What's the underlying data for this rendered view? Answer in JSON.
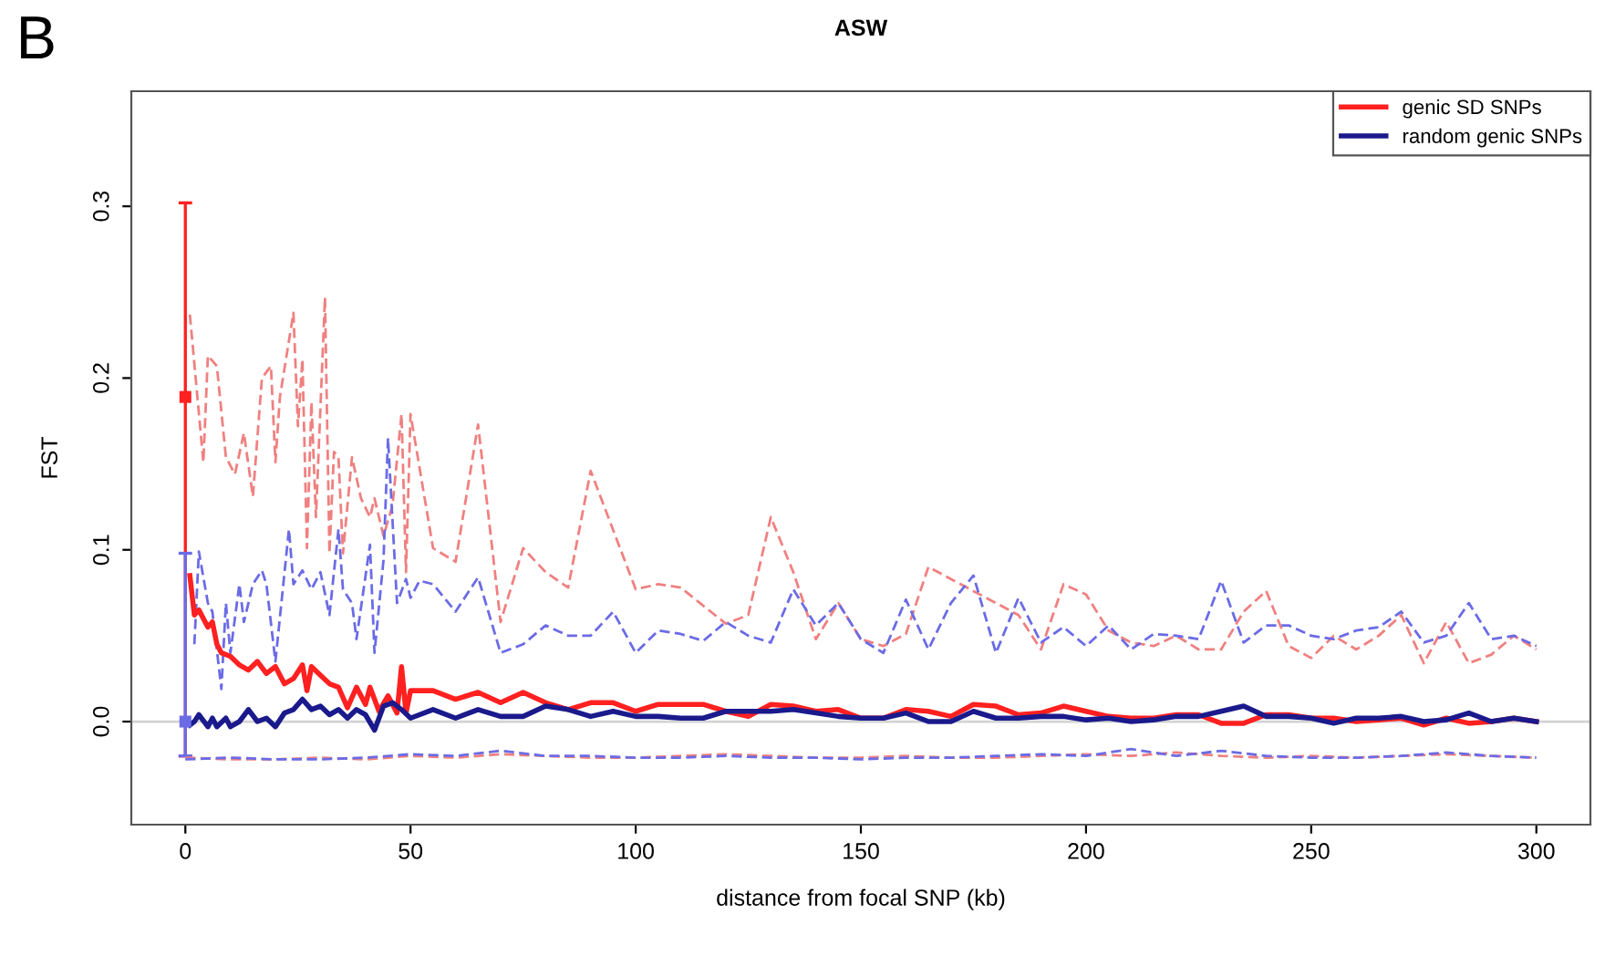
{
  "chart_data": {
    "type": "line",
    "title": "ASW",
    "xlabel": "distance from focal SNP (kb)",
    "ylabel": "FST",
    "annotations": [
      "B"
    ],
    "xlim": [
      -12,
      312
    ],
    "xticks": [
      0,
      50,
      100,
      150,
      200,
      250,
      300
    ],
    "ylim": [
      -0.06,
      0.367
    ],
    "yticks": [
      {
        "value": 0,
        "label": "0.0"
      },
      {
        "value": 0.1,
        "label": "0.1"
      },
      {
        "value": 0.2,
        "label": "0.2"
      },
      {
        "value": 0.3,
        "label": "0.3"
      }
    ],
    "grid": false,
    "legend": "top right",
    "ref_lines": [
      {
        "axis": "y",
        "value": 0,
        "color": "#d3d3d3"
      }
    ],
    "series": [
      {
        "color": "#f08080",
        "line_style": "dashed",
        "x": [
          1,
          4,
          5,
          7,
          9,
          11,
          13,
          15,
          17,
          19,
          20,
          21,
          24,
          25,
          26,
          27,
          28,
          29,
          31,
          32,
          33,
          34,
          35,
          37,
          39,
          41,
          42,
          44,
          46,
          48,
          49,
          50,
          55,
          60,
          65,
          70,
          75,
          80,
          85,
          90,
          100,
          105,
          110,
          120,
          125,
          130,
          135,
          140,
          145,
          150,
          155,
          160,
          165,
          170,
          175,
          180,
          185,
          190,
          195,
          200,
          205,
          210,
          215,
          220,
          225,
          230,
          235,
          240,
          245,
          250,
          255,
          260,
          265,
          270,
          275,
          280,
          285,
          290,
          295,
          300
        ],
        "values": [
          0.237,
          0.151,
          0.213,
          0.207,
          0.154,
          0.144,
          0.168,
          0.131,
          0.2,
          0.207,
          0.151,
          0.189,
          0.238,
          0.172,
          0.211,
          0.101,
          0.186,
          0.119,
          0.247,
          0.098,
          0.157,
          0.154,
          0.098,
          0.154,
          0.13,
          0.119,
          0.13,
          0.108,
          0.126,
          0.179,
          0.087,
          0.179,
          0.101,
          0.093,
          0.173,
          0.058,
          0.101,
          0.087,
          0.078,
          0.146,
          0.077,
          0.08,
          0.078,
          0.057,
          0.062,
          0.119,
          0.087,
          0.048,
          0.069,
          0.048,
          0.044,
          0.051,
          0.09,
          0.083,
          0.076,
          0.069,
          0.062,
          0.042,
          0.08,
          0.074,
          0.053,
          0.046,
          0.044,
          0.05,
          0.042,
          0.042,
          0.064,
          0.076,
          0.044,
          0.037,
          0.05,
          0.042,
          0.05,
          0.062,
          0.034,
          0.058,
          0.034,
          0.039,
          0.05,
          0.042
        ]
      },
      {
        "color": "#6b6be6",
        "line_style": "dashed",
        "x": [
          2,
          3,
          5,
          6,
          8,
          9,
          10,
          12,
          13,
          15,
          17,
          18,
          20,
          23,
          24,
          26,
          28,
          30,
          32,
          34,
          35,
          37,
          38,
          41,
          42,
          44,
          45,
          47,
          49,
          50,
          52,
          55,
          60,
          65,
          70,
          75,
          80,
          85,
          90,
          95,
          100,
          105,
          110,
          115,
          120,
          125,
          130,
          135,
          140,
          145,
          150,
          155,
          160,
          165,
          170,
          175,
          180,
          185,
          190,
          195,
          200,
          205,
          210,
          215,
          220,
          225,
          230,
          235,
          240,
          245,
          250,
          255,
          260,
          265,
          270,
          275,
          280,
          285,
          290,
          295,
          300
        ],
        "values": [
          0.045,
          0.099,
          0.069,
          0.064,
          0.019,
          0.069,
          0.04,
          0.08,
          0.058,
          0.08,
          0.088,
          0.08,
          0.035,
          0.112,
          0.08,
          0.088,
          0.077,
          0.087,
          0.062,
          0.112,
          0.077,
          0.069,
          0.048,
          0.103,
          0.04,
          0.094,
          0.165,
          0.069,
          0.083,
          0.072,
          0.082,
          0.08,
          0.064,
          0.084,
          0.04,
          0.045,
          0.056,
          0.05,
          0.05,
          0.064,
          0.04,
          0.053,
          0.051,
          0.047,
          0.058,
          0.05,
          0.046,
          0.077,
          0.056,
          0.069,
          0.048,
          0.04,
          0.071,
          0.042,
          0.069,
          0.085,
          0.04,
          0.072,
          0.046,
          0.055,
          0.044,
          0.056,
          0.042,
          0.051,
          0.05,
          0.048,
          0.082,
          0.046,
          0.056,
          0.056,
          0.05,
          0.048,
          0.053,
          0.055,
          0.064,
          0.046,
          0.05,
          0.069,
          0.048,
          0.05,
          0.044
        ]
      },
      {
        "color": "#f08080",
        "line_style": "dashed",
        "x": [
          0,
          10,
          20,
          30,
          40,
          50,
          60,
          70,
          80,
          90,
          100,
          110,
          120,
          130,
          140,
          150,
          160,
          170,
          180,
          190,
          200,
          210,
          220,
          230,
          240,
          250,
          260,
          270,
          280,
          290,
          300
        ],
        "values": [
          -0.021,
          -0.022,
          -0.022,
          -0.021,
          -0.022,
          -0.02,
          -0.021,
          -0.019,
          -0.02,
          -0.021,
          -0.021,
          -0.02,
          -0.019,
          -0.02,
          -0.021,
          -0.021,
          -0.02,
          -0.021,
          -0.021,
          -0.02,
          -0.019,
          -0.02,
          -0.018,
          -0.02,
          -0.021,
          -0.02,
          -0.021,
          -0.02,
          -0.019,
          -0.02,
          -0.021
        ]
      },
      {
        "color": "#6b6be6",
        "line_style": "dashed",
        "x": [
          0,
          10,
          20,
          30,
          40,
          50,
          60,
          70,
          80,
          90,
          100,
          110,
          120,
          130,
          140,
          150,
          160,
          170,
          180,
          190,
          200,
          210,
          220,
          230,
          240,
          250,
          260,
          270,
          280,
          290,
          300
        ],
        "values": [
          -0.022,
          -0.021,
          -0.022,
          -0.022,
          -0.021,
          -0.019,
          -0.02,
          -0.017,
          -0.02,
          -0.02,
          -0.021,
          -0.021,
          -0.02,
          -0.021,
          -0.021,
          -0.022,
          -0.021,
          -0.021,
          -0.02,
          -0.019,
          -0.02,
          -0.016,
          -0.02,
          -0.017,
          -0.02,
          -0.021,
          -0.021,
          -0.02,
          -0.018,
          -0.02,
          -0.021
        ]
      },
      {
        "name": "genic SD SNPs",
        "color": "#ff2020",
        "line_style": "solid",
        "x": [
          1,
          2,
          3,
          5,
          6,
          7,
          8,
          10,
          12,
          14,
          16,
          18,
          20,
          22,
          24,
          26,
          27,
          28,
          30,
          32,
          34,
          36,
          38,
          40,
          41,
          43,
          45,
          47,
          48,
          49,
          50,
          55,
          60,
          65,
          70,
          75,
          80,
          85,
          90,
          95,
          100,
          105,
          110,
          115,
          120,
          125,
          130,
          135,
          140,
          145,
          150,
          155,
          160,
          165,
          170,
          175,
          180,
          185,
          190,
          195,
          200,
          205,
          210,
          215,
          220,
          225,
          230,
          235,
          240,
          245,
          250,
          255,
          260,
          265,
          270,
          275,
          280,
          285,
          290,
          295,
          300
        ],
        "values": [
          0.085,
          0.062,
          0.065,
          0.055,
          0.058,
          0.045,
          0.04,
          0.038,
          0.033,
          0.03,
          0.035,
          0.028,
          0.032,
          0.022,
          0.025,
          0.033,
          0.018,
          0.032,
          0.027,
          0.022,
          0.02,
          0.008,
          0.02,
          0.01,
          0.02,
          0.006,
          0.015,
          0.005,
          0.032,
          0.005,
          0.018,
          0.018,
          0.013,
          0.017,
          0.011,
          0.017,
          0.011,
          0.007,
          0.011,
          0.011,
          0.006,
          0.01,
          0.01,
          0.01,
          0.006,
          0.003,
          0.01,
          0.009,
          0.006,
          0.007,
          0.002,
          0.002,
          0.007,
          0.006,
          0.003,
          0.01,
          0.009,
          0.004,
          0.005,
          0.009,
          0.006,
          0.003,
          0.002,
          0.002,
          0.004,
          0.004,
          -0.001,
          -0.001,
          0.004,
          0.004,
          0.002,
          0.002,
          0.0,
          0.001,
          0.002,
          -0.002,
          0.002,
          -0.001,
          0.0,
          0.002,
          0.0
        ]
      },
      {
        "name": "random genic SNPs",
        "color": "#1a1a8c",
        "line_style": "solid",
        "x": [
          1,
          2,
          3,
          5,
          6,
          7,
          9,
          10,
          12,
          14,
          16,
          18,
          20,
          22,
          24,
          26,
          28,
          30,
          32,
          34,
          36,
          38,
          40,
          42,
          44,
          46,
          48,
          50,
          55,
          60,
          65,
          70,
          75,
          80,
          85,
          90,
          95,
          100,
          105,
          110,
          115,
          120,
          125,
          130,
          135,
          140,
          145,
          150,
          155,
          160,
          165,
          170,
          175,
          180,
          185,
          190,
          195,
          200,
          205,
          210,
          215,
          220,
          225,
          230,
          235,
          240,
          245,
          250,
          255,
          260,
          265,
          270,
          275,
          280,
          285,
          290,
          295,
          300
        ],
        "values": [
          -0.002,
          0.0,
          0.004,
          -0.003,
          0.002,
          -0.003,
          0.002,
          -0.003,
          0.0,
          0.007,
          0.0,
          0.002,
          -0.003,
          0.005,
          0.007,
          0.013,
          0.007,
          0.009,
          0.004,
          0.007,
          0.002,
          0.007,
          0.004,
          -0.005,
          0.009,
          0.011,
          0.007,
          0.002,
          0.007,
          0.002,
          0.007,
          0.003,
          0.003,
          0.009,
          0.007,
          0.003,
          0.006,
          0.003,
          0.003,
          0.002,
          0.002,
          0.006,
          0.006,
          0.006,
          0.007,
          0.005,
          0.003,
          0.002,
          0.002,
          0.005,
          0.0,
          0.0,
          0.006,
          0.002,
          0.002,
          0.003,
          0.003,
          0.001,
          0.002,
          0.0,
          0.001,
          0.003,
          0.003,
          0.006,
          0.009,
          0.003,
          0.003,
          0.002,
          -0.001,
          0.002,
          0.002,
          0.003,
          0.0,
          0.001,
          0.005,
          0.0,
          0.002,
          0.0
        ]
      },
      {
        "type": "scatter",
        "color": "#ff2020",
        "marker": "square",
        "x": [
          0
        ],
        "values": [
          0.189
        ],
        "errors": [
          [
            -0.02,
            0.302
          ]
        ]
      },
      {
        "type": "scatter",
        "color": "#6b6be6",
        "marker": "square",
        "x": [
          0
        ],
        "values": [
          0.0
        ],
        "errors": [
          [
            -0.02,
            0.098
          ]
        ]
      }
    ]
  }
}
